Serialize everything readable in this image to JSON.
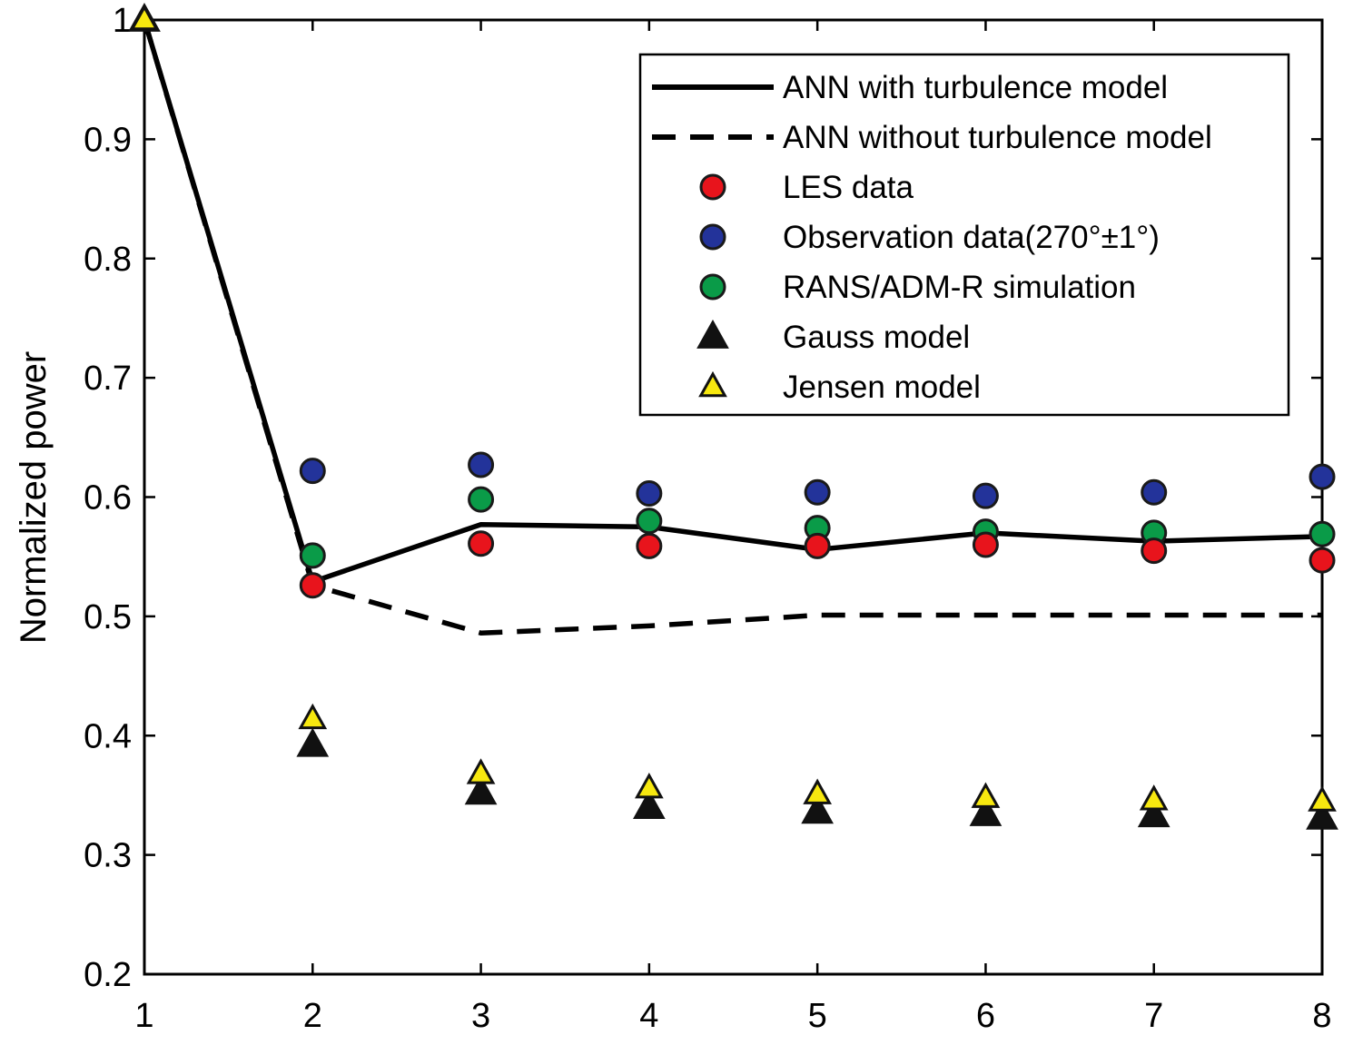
{
  "chart_data": {
    "type": "line",
    "title": "",
    "xlabel": "",
    "ylabel": "Normalized power",
    "xlim": [
      1,
      8
    ],
    "ylim": [
      0.2,
      1.0
    ],
    "x_ticks": [
      "1",
      "2",
      "3",
      "4",
      "5",
      "6",
      "7",
      "8"
    ],
    "y_ticks": [
      "0.2",
      "0.3",
      "0.4",
      "0.5",
      "0.6",
      "0.7",
      "0.8",
      "0.9",
      "1"
    ],
    "grid": false,
    "legend_position": "top-right",
    "x": [
      1,
      2,
      3,
      4,
      5,
      6,
      7,
      8
    ],
    "series": [
      {
        "name": "ANN with turbulence model",
        "kind": "line",
        "style": "solid",
        "color": "#000000",
        "values": [
          1.0,
          0.529,
          0.577,
          0.575,
          0.556,
          0.57,
          0.563,
          0.567
        ]
      },
      {
        "name": "ANN without turbulence model",
        "kind": "line",
        "style": "dashed",
        "color": "#000000",
        "values": [
          1.0,
          0.526,
          0.486,
          0.492,
          0.501,
          0.501,
          0.501,
          0.501
        ]
      },
      {
        "name": "LES data",
        "kind": "marker",
        "marker": "circle",
        "color": "#e8141c",
        "values": [
          null,
          0.526,
          0.561,
          0.559,
          0.559,
          0.56,
          0.555,
          0.547
        ]
      },
      {
        "name": "Observation data(270°±1°)",
        "kind": "marker",
        "marker": "circle",
        "color": "#23339a",
        "values": [
          null,
          0.622,
          0.627,
          0.603,
          0.604,
          0.601,
          0.604,
          0.617
        ]
      },
      {
        "name": "RANS/ADM-R simulation",
        "kind": "marker",
        "marker": "circle",
        "color": "#0a9b48",
        "values": [
          null,
          0.551,
          0.598,
          0.58,
          0.574,
          0.571,
          0.57,
          0.569
        ]
      },
      {
        "name": "Gauss model",
        "kind": "marker",
        "marker": "triangle",
        "color": "#111111",
        "values": [
          1.0,
          0.392,
          0.352,
          0.34,
          0.336,
          0.334,
          0.333,
          0.331
        ]
      },
      {
        "name": "Jensen model",
        "kind": "marker",
        "marker": "triangle",
        "color": "#f7e80f",
        "values": [
          1.0,
          0.414,
          0.368,
          0.356,
          0.351,
          0.348,
          0.346,
          0.345
        ]
      }
    ]
  }
}
